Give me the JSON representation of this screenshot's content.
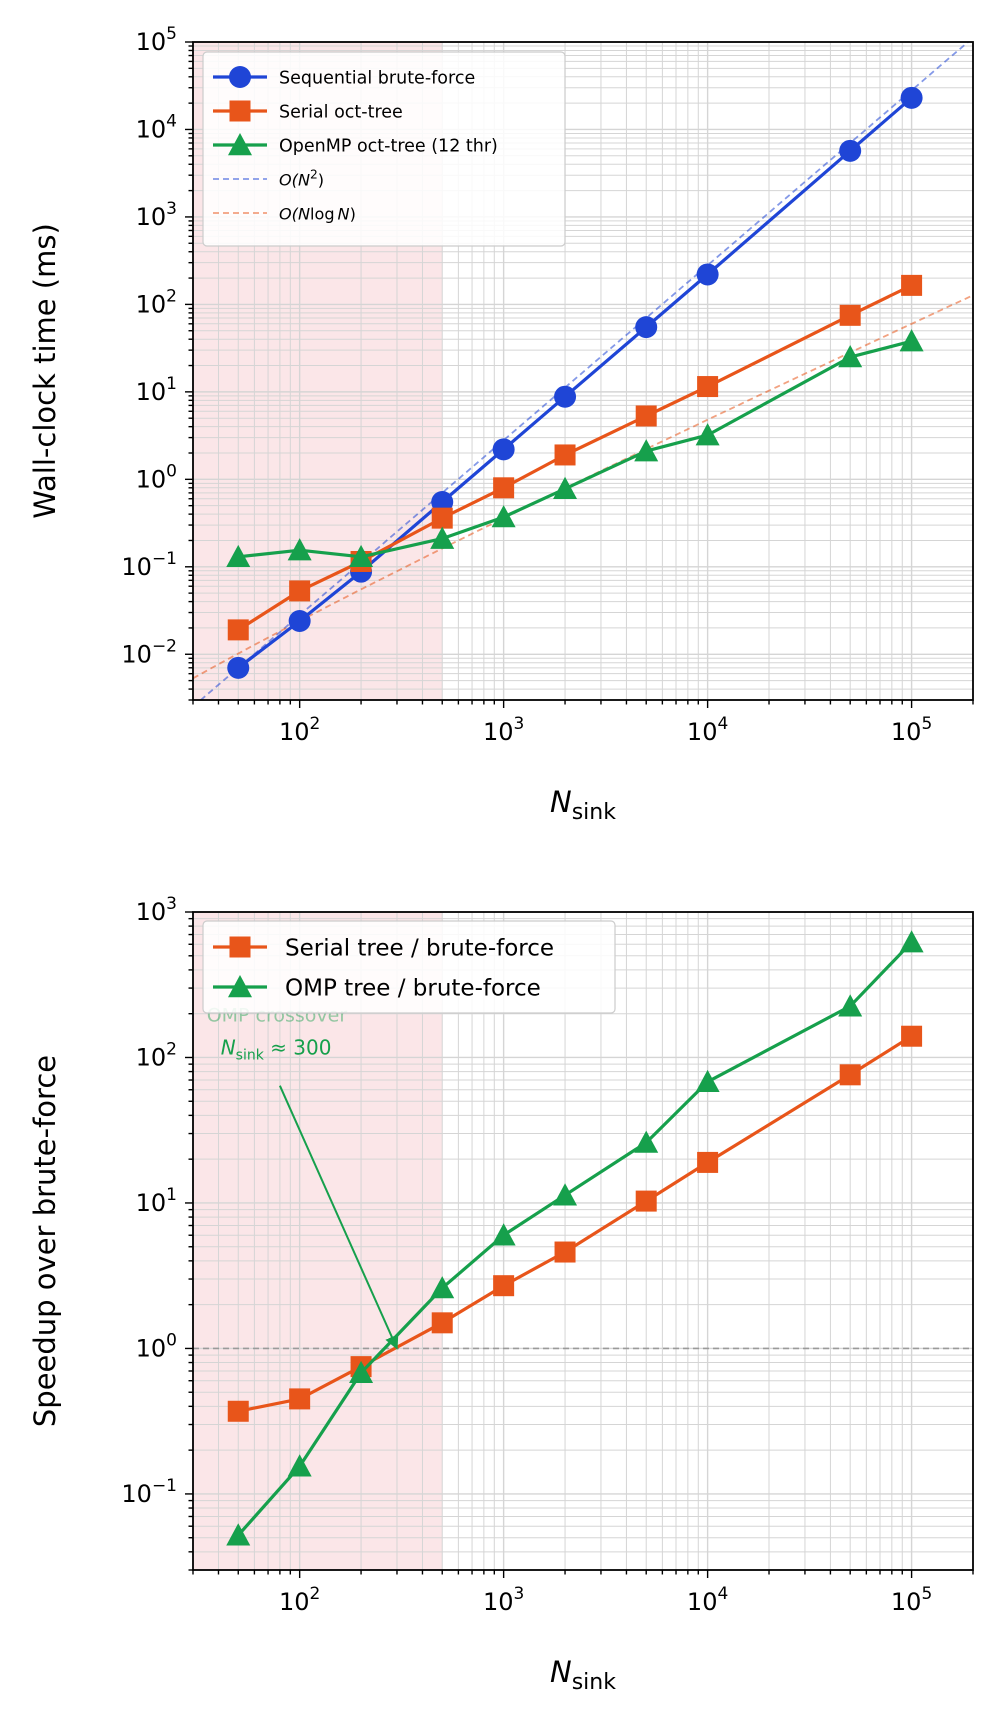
{
  "colors": {
    "brute": "#1f45d6",
    "serial": "#e8551a",
    "omp": "#16a04c",
    "shade": "#fbe3e6",
    "grid": "#d5d5d5",
    "ref": "#9a9a9a"
  },
  "chart_data": [
    {
      "type": "line",
      "xscale": "log",
      "yscale": "log",
      "xlim": [
        30,
        200000
      ],
      "ylim": [
        0.003,
        100000
      ],
      "xlabel": "N",
      "xlabel_sub": "sink",
      "ylabel": "Wall-clock time (ms)",
      "xticks": [
        {
          "value": 100,
          "base": "10",
          "exp": "2"
        },
        {
          "value": 1000,
          "base": "10",
          "exp": "3"
        },
        {
          "value": 10000,
          "base": "10",
          "exp": "4"
        },
        {
          "value": 100000,
          "base": "10",
          "exp": "5"
        }
      ],
      "yticks": [
        {
          "value": 0.01,
          "base": "10",
          "exp": "−2"
        },
        {
          "value": 0.1,
          "base": "10",
          "exp": "−1"
        },
        {
          "value": 1,
          "base": "10",
          "exp": "0"
        },
        {
          "value": 10,
          "base": "10",
          "exp": "1"
        },
        {
          "value": 100,
          "base": "10",
          "exp": "2"
        },
        {
          "value": 1000,
          "base": "10",
          "exp": "3"
        },
        {
          "value": 10000,
          "base": "10",
          "exp": "4"
        },
        {
          "value": 100000,
          "base": "10",
          "exp": "5"
        }
      ],
      "shaded_region": {
        "x": [
          30,
          500
        ]
      },
      "grid": "both",
      "legend": "upper-left",
      "x": [
        50,
        100,
        200,
        500,
        1000,
        2000,
        5000,
        10000,
        50000,
        100000
      ],
      "series": [
        {
          "name": "Sequential brute-force",
          "marker": "circle",
          "color_key": "brute",
          "values": [
            0.007,
            0.024,
            0.088,
            0.55,
            2.2,
            8.8,
            55,
            220,
            5700,
            23000
          ]
        },
        {
          "name": "Serial oct-tree",
          "marker": "square",
          "color_key": "serial",
          "values": [
            0.019,
            0.053,
            0.115,
            0.36,
            0.8,
            1.9,
            5.3,
            11.5,
            75,
            165
          ]
        },
        {
          "name": "OpenMP oct-tree (12 thr)",
          "marker": "triangle",
          "color_key": "omp",
          "values": [
            0.13,
            0.155,
            0.13,
            0.21,
            0.37,
            0.78,
            2.1,
            3.2,
            25,
            38
          ]
        }
      ],
      "reference_lines": [
        {
          "name": "O(N²)",
          "legend_parts": [
            "O(",
            "N",
            "2",
            ")"
          ],
          "kind": "n2",
          "coef": 2.8e-06,
          "opacity": 0.55,
          "color_key": "brute"
        },
        {
          "name": "O(N log N)",
          "legend_parts": [
            "O(",
            "N",
            "log",
            "N",
            ")"
          ],
          "kind": "nlogn",
          "coef": 0.00012,
          "opacity": 0.55,
          "color_key": "serial"
        }
      ]
    },
    {
      "type": "line",
      "xscale": "log",
      "yscale": "log",
      "xlim": [
        30,
        200000
      ],
      "ylim": [
        0.03,
        1000
      ],
      "xlabel": "N",
      "xlabel_sub": "sink",
      "ylabel": "Speedup over brute-force",
      "xticks": [
        {
          "value": 100,
          "base": "10",
          "exp": "2"
        },
        {
          "value": 1000,
          "base": "10",
          "exp": "3"
        },
        {
          "value": 10000,
          "base": "10",
          "exp": "4"
        },
        {
          "value": 100000,
          "base": "10",
          "exp": "5"
        }
      ],
      "yticks": [
        {
          "value": 0.1,
          "base": "10",
          "exp": "−1"
        },
        {
          "value": 1,
          "base": "10",
          "exp": "0"
        },
        {
          "value": 10,
          "base": "10",
          "exp": "1"
        },
        {
          "value": 100,
          "base": "10",
          "exp": "2"
        },
        {
          "value": 1000,
          "base": "10",
          "exp": "3"
        }
      ],
      "shaded_region": {
        "x": [
          30,
          500
        ]
      },
      "grid": "both",
      "legend": "upper-left",
      "hline": 1,
      "x": [
        50,
        100,
        200,
        500,
        1000,
        2000,
        5000,
        10000,
        50000,
        100000
      ],
      "series": [
        {
          "name": "Serial tree / brute-force",
          "marker": "square",
          "color_key": "serial",
          "values": [
            0.37,
            0.45,
            0.75,
            1.5,
            2.7,
            4.6,
            10.3,
            19,
            76,
            140
          ]
        },
        {
          "name": "OMP tree / brute-force",
          "marker": "triangle",
          "color_key": "omp",
          "values": [
            0.052,
            0.155,
            0.68,
            2.6,
            6,
            11.3,
            26,
            68,
            225,
            620
          ]
        }
      ],
      "annotation": {
        "line1": "OMP crossover",
        "line2_N": "N",
        "line2_sub": "sink",
        "line2_rest": " ≈ 300",
        "text_at": [
          55,
          110
        ],
        "arrow_from": [
          80,
          64
        ],
        "arrow_to": [
          300,
          1.0
        ],
        "color_key": "omp"
      }
    }
  ]
}
